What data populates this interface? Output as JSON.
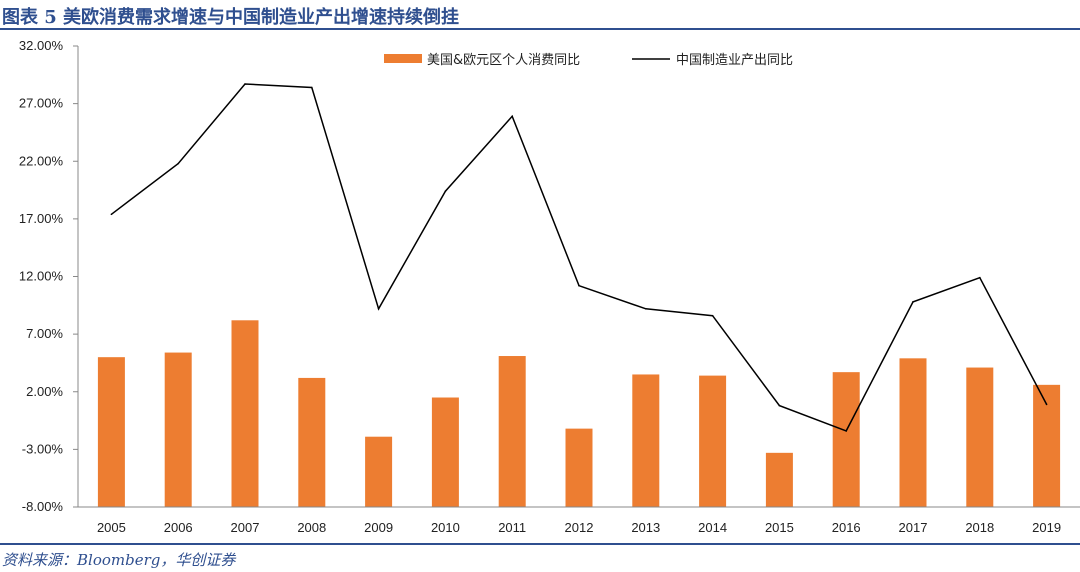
{
  "header": {
    "title": "图表 5 美欧消费需求增速与中国制造业产出增速持续倒挂"
  },
  "footer": {
    "source": "资料来源：Bloomberg，华创证券"
  },
  "colors": {
    "bar": "#ED7D31",
    "line": "#000000",
    "header": "#2F4F8F"
  },
  "chart_data": {
    "type": "bar+line",
    "title": "美欧消费需求增速与中国制造业产出增速持续倒挂",
    "categories": [
      "2005",
      "2006",
      "2007",
      "2008",
      "2009",
      "2010",
      "2011",
      "2012",
      "2013",
      "2014",
      "2015",
      "2016",
      "2017",
      "2018",
      "2019"
    ],
    "ylim": [
      -8,
      32
    ],
    "yticks": [
      -8,
      -3,
      2,
      7,
      12,
      17,
      22,
      27,
      32
    ],
    "ytick_labels": [
      "-8.00%",
      "-3.00%",
      "2.00%",
      "7.00%",
      "12.00%",
      "17.00%",
      "22.00%",
      "27.00%",
      "32.00%"
    ],
    "legend_position": "top",
    "series": [
      {
        "name": "美国&欧元区个人消费同比",
        "type": "bar",
        "values": [
          5.0,
          5.4,
          8.2,
          3.2,
          -1.9,
          1.5,
          5.1,
          -1.2,
          3.5,
          3.4,
          -3.3,
          3.7,
          4.9,
          4.1,
          2.6
        ]
      },
      {
        "name": "中国制造业产出同比",
        "type": "line",
        "values": [
          17.4,
          21.8,
          28.7,
          28.4,
          9.2,
          19.4,
          25.9,
          11.2,
          9.2,
          8.6,
          0.8,
          -1.4,
          9.8,
          11.9,
          0.9
        ]
      }
    ]
  }
}
